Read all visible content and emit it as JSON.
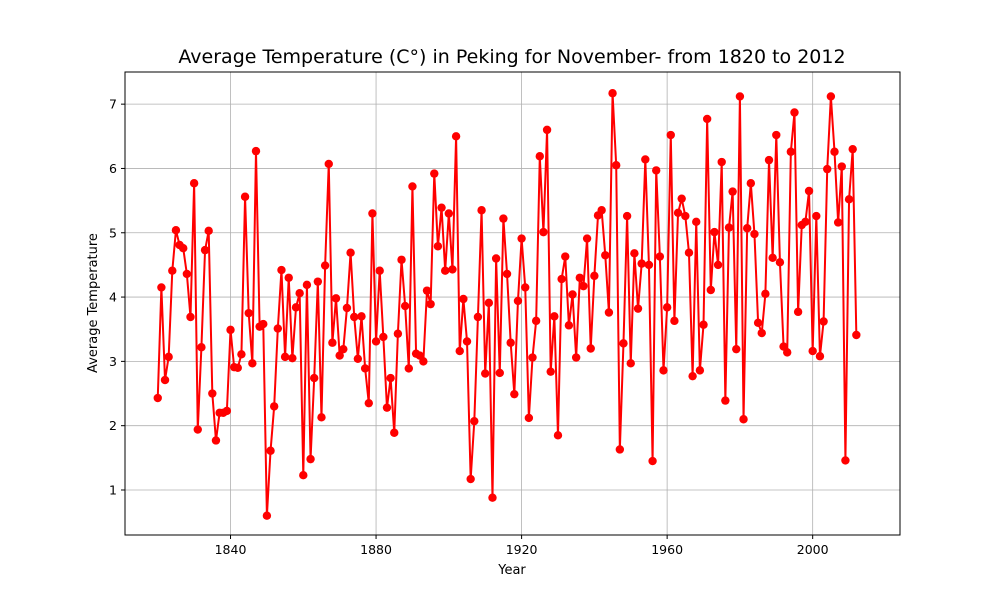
{
  "chart_data": {
    "type": "line",
    "title": "Average Temperature (C°) in Peking for November- from 1820 to 2012",
    "xlabel": "Year",
    "ylabel": "Average Temperature",
    "xlim": [
      1811,
      2024
    ],
    "ylim": [
      0.3,
      7.5
    ],
    "xticks": [
      1840,
      1880,
      1920,
      1960,
      2000
    ],
    "yticks": [
      1,
      2,
      3,
      4,
      5,
      6,
      7
    ],
    "grid": true,
    "color": "#ff0000",
    "marker": "circle",
    "series": [
      {
        "x": [
          1820,
          1821,
          1822,
          1823,
          1824,
          1825,
          1826,
          1827,
          1828,
          1829,
          1830,
          1831,
          1832,
          1833,
          1834,
          1835,
          1836,
          1837,
          1838,
          1839,
          1840,
          1841,
          1842,
          1843,
          1844,
          1845,
          1846,
          1847,
          1848,
          1849,
          1850,
          1851,
          1852,
          1853,
          1854,
          1855,
          1856,
          1857,
          1858,
          1859,
          1860,
          1861,
          1862,
          1863,
          1864,
          1865,
          1866,
          1867,
          1868,
          1869,
          1870,
          1871,
          1872,
          1873,
          1874,
          1875,
          1876,
          1877,
          1878,
          1879,
          1880,
          1881,
          1882,
          1883,
          1884,
          1885,
          1886,
          1887,
          1888,
          1889,
          1890,
          1891,
          1892,
          1893,
          1894,
          1895,
          1896,
          1897,
          1898,
          1899,
          1900,
          1901,
          1902,
          1903,
          1904,
          1905,
          1906,
          1907,
          1908,
          1909,
          1910,
          1911,
          1912,
          1913,
          1914,
          1915,
          1916,
          1917,
          1918,
          1919,
          1920,
          1921,
          1922,
          1923,
          1924,
          1925,
          1926,
          1927,
          1928,
          1929,
          1930,
          1931,
          1932,
          1933,
          1934,
          1935,
          1936,
          1937,
          1938,
          1939,
          1940,
          1941,
          1942,
          1943,
          1944,
          1945,
          1946,
          1947,
          1948,
          1949,
          1950,
          1951,
          1952,
          1953,
          1954,
          1955,
          1956,
          1957,
          1958,
          1959,
          1960,
          1961,
          1962,
          1963,
          1964,
          1965,
          1966,
          1967,
          1968,
          1969,
          1970,
          1971,
          1972,
          1973,
          1974,
          1975,
          1976,
          1977,
          1978,
          1979,
          1980,
          1981,
          1982,
          1983,
          1984,
          1985,
          1986,
          1987,
          1988,
          1989,
          1990,
          1991,
          1992,
          1993,
          1994,
          1995,
          1996,
          1997,
          1998,
          1999,
          2000,
          2001,
          2002,
          2003,
          2004,
          2005,
          2006,
          2007,
          2008,
          2009,
          2010,
          2011,
          2012
        ],
        "values": [
          2.43,
          4.15,
          2.71,
          3.07,
          4.41,
          5.04,
          4.81,
          4.76,
          4.36,
          3.69,
          5.77,
          1.94,
          3.22,
          4.73,
          5.03,
          2.5,
          1.77,
          2.2,
          2.2,
          2.23,
          3.49,
          2.91,
          2.9,
          3.11,
          5.56,
          3.75,
          2.97,
          6.27,
          3.54,
          3.58,
          0.6,
          1.61,
          2.3,
          3.51,
          4.42,
          3.07,
          4.3,
          3.05,
          3.84,
          4.06,
          1.23,
          4.19,
          1.48,
          2.74,
          4.24,
          2.13,
          4.49,
          6.07,
          3.29,
          3.98,
          3.09,
          3.19,
          3.83,
          4.69,
          3.69,
          3.04,
          3.7,
          2.89,
          2.35,
          5.3,
          3.31,
          4.41,
          3.38,
          2.28,
          2.74,
          1.89,
          3.43,
          4.58,
          3.86,
          2.89,
          5.72,
          3.12,
          3.09,
          3.0,
          4.1,
          3.89,
          5.92,
          4.79,
          5.39,
          4.41,
          5.3,
          4.43,
          6.5,
          3.16,
          3.97,
          3.31,
          1.17,
          2.07,
          3.69,
          5.35,
          2.81,
          3.91,
          0.88,
          4.6,
          2.82,
          5.22,
          4.36,
          3.29,
          2.49,
          3.94,
          4.91,
          4.15,
          2.12,
          3.06,
          3.63,
          6.19,
          5.01,
          6.6,
          2.84,
          3.7,
          1.85,
          4.28,
          4.63,
          3.56,
          4.04,
          3.06,
          4.3,
          4.17,
          4.91,
          3.2,
          4.33,
          5.27,
          5.35,
          4.65,
          3.76,
          7.17,
          6.05,
          1.63,
          3.28,
          5.26,
          2.97,
          4.68,
          3.82,
          4.52,
          6.14,
          4.5,
          1.45,
          5.97,
          4.63,
          2.86,
          3.84,
          6.52,
          3.63,
          5.31,
          5.53,
          5.26,
          4.69,
          2.77,
          5.17,
          2.86,
          3.57,
          6.77,
          4.11,
          5.01,
          4.5,
          6.1,
          2.39,
          5.08,
          5.64,
          3.19,
          7.12,
          2.1,
          5.07,
          5.77,
          4.98,
          3.6,
          3.44,
          4.05,
          6.13,
          4.61,
          6.52,
          4.54,
          3.23,
          3.14,
          6.26,
          6.87,
          3.77,
          5.12,
          5.17,
          5.65,
          3.16,
          5.26,
          3.08,
          3.62,
          5.99,
          7.12,
          6.26,
          5.16,
          6.03,
          1.46,
          5.52,
          6.3,
          3.41
        ]
      }
    ]
  }
}
